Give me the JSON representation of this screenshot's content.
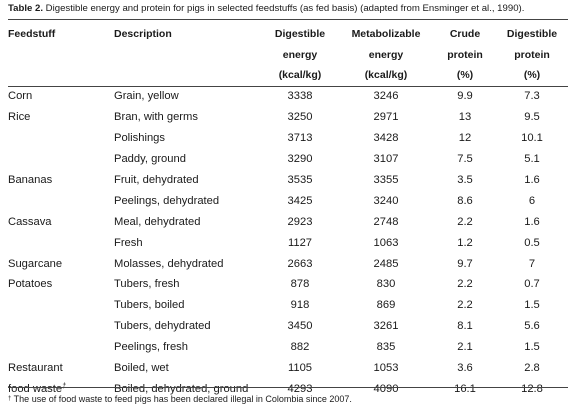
{
  "caption": {
    "label": "Table 2.",
    "text": " Digestible energy and protein for pigs in selected feedstuffs (as fed basis) (adapted from Ensminger et al., 1990)."
  },
  "headers": [
    {
      "lines": [
        "Feedstuff"
      ]
    },
    {
      "lines": [
        "Description"
      ]
    },
    {
      "lines": [
        "Digestible",
        "energy",
        "(kcal/kg)"
      ]
    },
    {
      "lines": [
        "Metabolizable",
        "energy",
        "(kcal/kg)"
      ]
    },
    {
      "lines": [
        "Crude",
        "protein",
        "(%)"
      ]
    },
    {
      "lines": [
        "Digestible",
        "protein",
        "(%)"
      ]
    }
  ],
  "rows": [
    {
      "feedstuff": "Corn",
      "description": "Grain, yellow",
      "de": "3338",
      "me": "3246",
      "cp": "9.9",
      "dp": "7.3"
    },
    {
      "feedstuff": "Rice",
      "description": "Bran, with germs",
      "de": "3250",
      "me": "2971",
      "cp": "13",
      "dp": "9.5"
    },
    {
      "feedstuff": "",
      "description": "Polishings",
      "de": "3713",
      "me": "3428",
      "cp": "12",
      "dp": "10.1"
    },
    {
      "feedstuff": "",
      "description": "Paddy, ground",
      "de": "3290",
      "me": "3107",
      "cp": "7.5",
      "dp": "5.1"
    },
    {
      "feedstuff": "Bananas",
      "description": "Fruit, dehydrated",
      "de": "3535",
      "me": "3355",
      "cp": "3.5",
      "dp": "1.6"
    },
    {
      "feedstuff": "",
      "description": "Peelings, dehydrated",
      "de": "3425",
      "me": "3240",
      "cp": "8.6",
      "dp": "6"
    },
    {
      "feedstuff": "Cassava",
      "description": "Meal, dehydrated",
      "de": "2923",
      "me": "2748",
      "cp": "2.2",
      "dp": "1.6"
    },
    {
      "feedstuff": "",
      "description": "Fresh",
      "de": "1127",
      "me": "1063",
      "cp": "1.2",
      "dp": "0.5"
    },
    {
      "feedstuff": "Sugarcane",
      "description": "Molasses, dehydrated",
      "de": "2663",
      "me": "2485",
      "cp": "9.7",
      "dp": "7"
    },
    {
      "feedstuff": "Potatoes",
      "description": "Tubers, fresh",
      "de": "878",
      "me": "830",
      "cp": "2.2",
      "dp": "0.7"
    },
    {
      "feedstuff": "",
      "description": "Tubers, boiled",
      "de": "918",
      "me": "869",
      "cp": "2.2",
      "dp": "1.5"
    },
    {
      "feedstuff": "",
      "description": "Tubers, dehydrated",
      "de": "3450",
      "me": "3261",
      "cp": "8.1",
      "dp": "5.6"
    },
    {
      "feedstuff": "",
      "description": "Peelings, fresh",
      "de": "882",
      "me": "835",
      "cp": "2.1",
      "dp": "1.5"
    },
    {
      "feedstuff": "Restaurant",
      "description": "Boiled, wet",
      "de": "1105",
      "me": "1053",
      "cp": "3.6",
      "dp": "2.8"
    },
    {
      "feedstuff": "food waste",
      "feedstuff_mark": "†",
      "description": "Boiled, dehydrated, ground",
      "de": "4293",
      "me": "4090",
      "cp": "16.1",
      "dp": "12.8"
    }
  ],
  "footnote": {
    "mark": "†",
    "text": " The use of food waste to feed pigs has been declared illegal in Colombia  since 2007."
  }
}
